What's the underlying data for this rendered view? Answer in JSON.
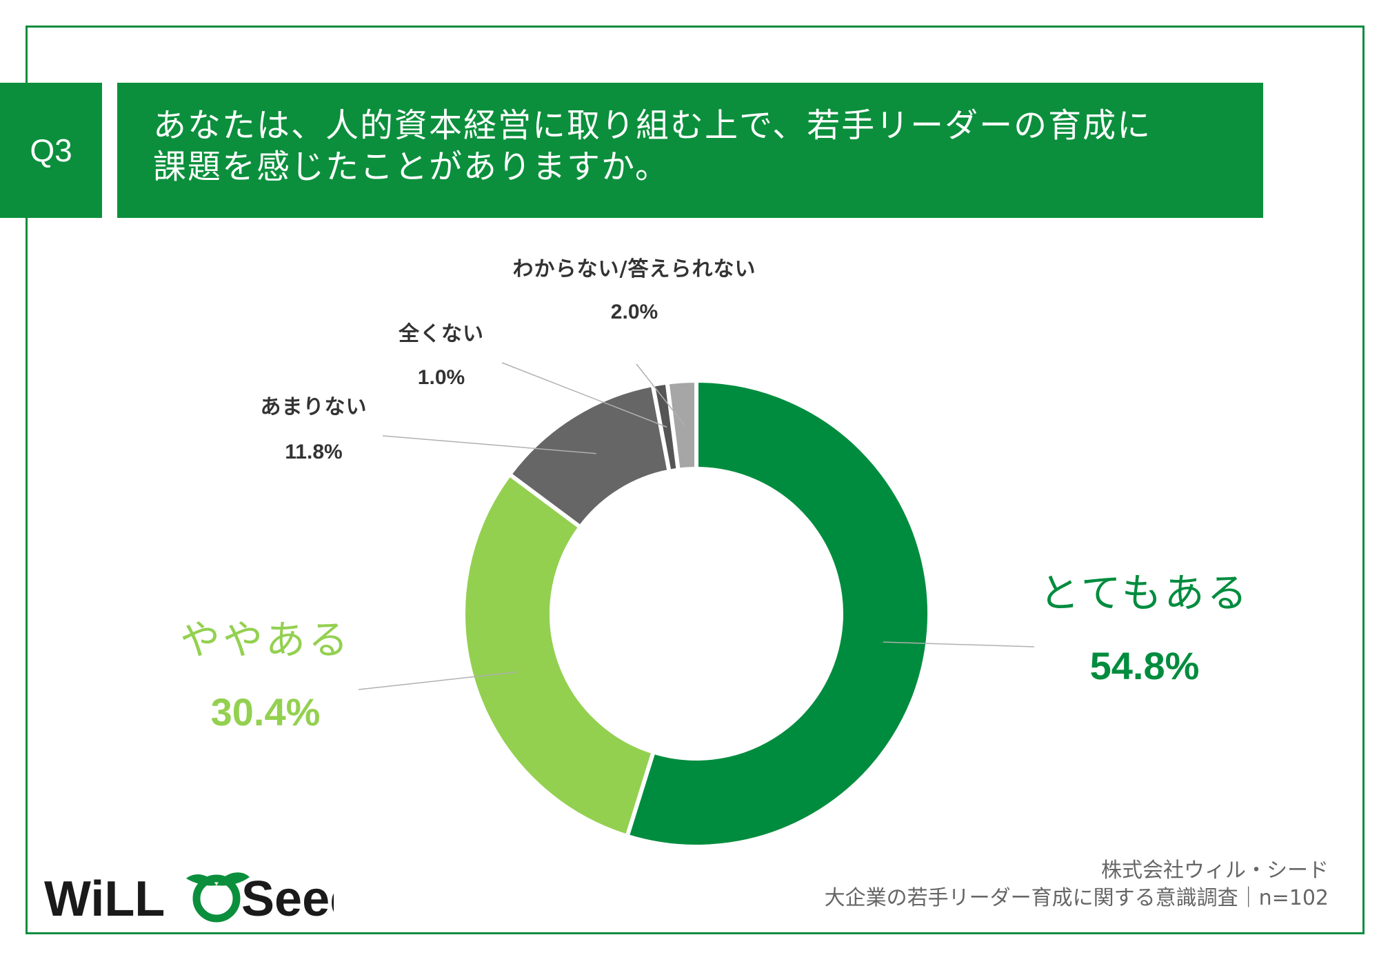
{
  "question": {
    "number": "Q3",
    "line1": "あなたは、人的資本経営に取り組む上で、若手リーダーの育成に",
    "line2": "課題を感じたことがありますか。"
  },
  "chart_data": {
    "type": "pie",
    "style": "donut",
    "slices": [
      {
        "label": "とてもある",
        "value": 54.8,
        "value_label": "54.8%",
        "color": "#008c3e"
      },
      {
        "label": "ややある",
        "value": 30.4,
        "value_label": "30.4%",
        "color": "#93d050"
      },
      {
        "label": "あまりない",
        "value": 11.8,
        "value_label": "11.8%",
        "color": "#666666"
      },
      {
        "label": "全くない",
        "value": 1.0,
        "value_label": "1.0%",
        "color": "#555555"
      },
      {
        "label": "わからない/答えられない",
        "value": 2.0,
        "value_label": "2.0%",
        "color": "#a6a6a6"
      }
    ],
    "legend": "none"
  },
  "footer": {
    "company": "株式会社ウィル・シード",
    "survey": "大企業の若手リーダー育成に関する意識調査｜n=102"
  },
  "logo": {
    "text_left": "WiLL",
    "text_right": "Seed",
    "brand_color": "#0b8f3c"
  }
}
